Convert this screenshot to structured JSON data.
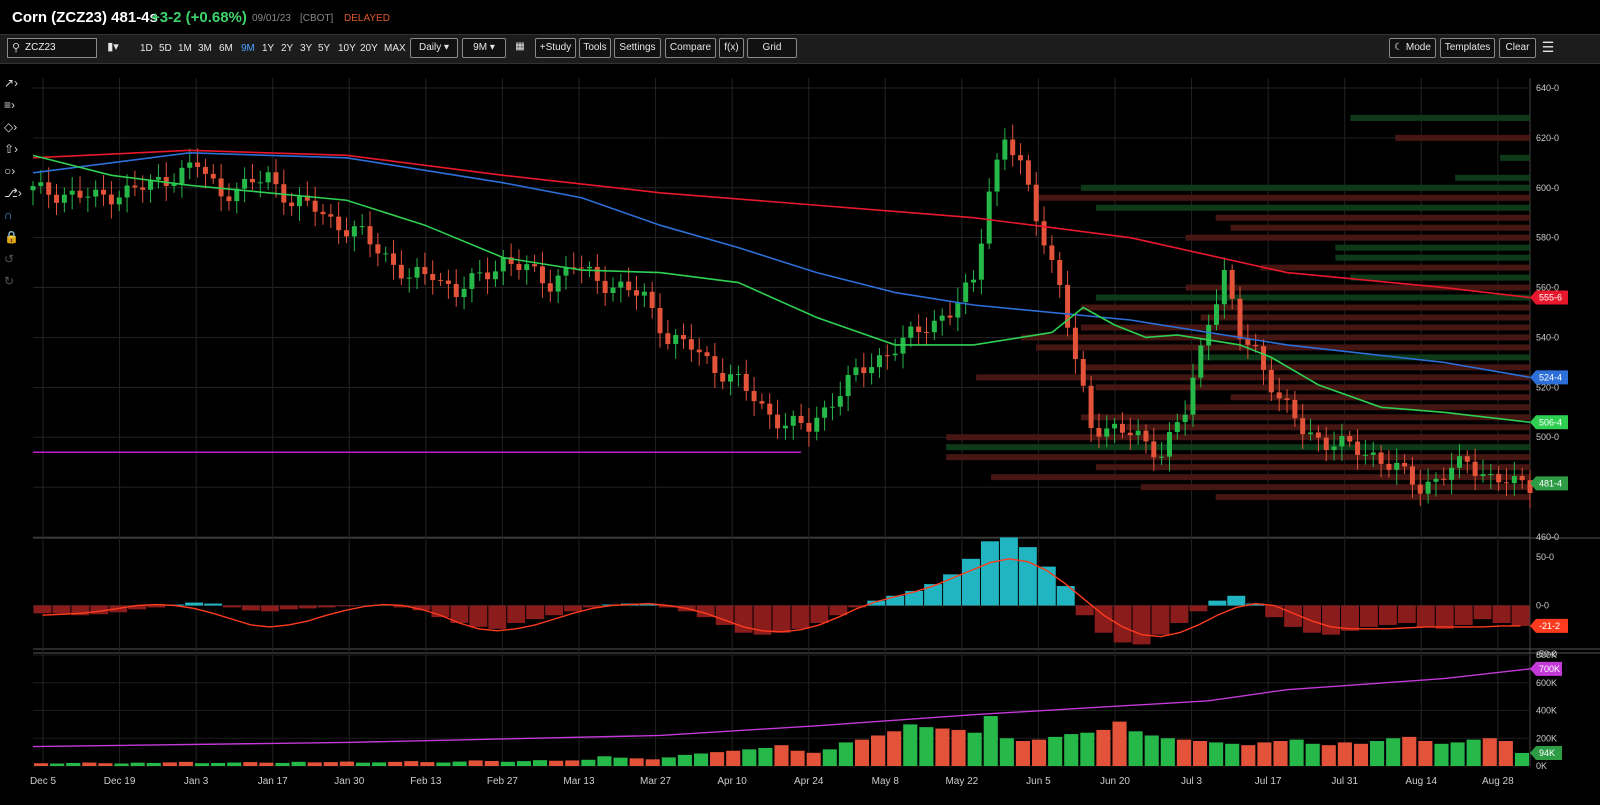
{
  "header": {
    "name": "Corn (ZCZ23) 481-4s",
    "change": "+3-2 (+0.68%)",
    "date": "09/01/23",
    "exchange": "[CBOT]",
    "status": "DELAYED"
  },
  "toolbar": {
    "symbol": "ZCZ23",
    "chart_type_icon": "bar-chart-icon",
    "timeframes": [
      "1D",
      "5D",
      "1M",
      "3M",
      "6M",
      "9M",
      "1Y",
      "2Y",
      "3Y",
      "5Y",
      "10Y",
      "20Y",
      "MAX"
    ],
    "active_timeframe": "9M",
    "interval": "Daily",
    "range": "9M",
    "study": "+Study",
    "tools": "Tools",
    "settings": "Settings",
    "compare": "Compare",
    "fx": "f(x)",
    "grid": "Grid",
    "mode": "Mode",
    "templates": "Templates",
    "clear": "Clear"
  },
  "left_tools": [
    "line-tool-icon",
    "fib-tool-icon",
    "shape-tool-icon",
    "arrow-tool-icon",
    "text-tool-icon",
    "pattern-tool-icon",
    "magnet-icon",
    "lock-icon",
    "undo-icon",
    "redo-icon"
  ],
  "colors": {
    "up": "#27b84a",
    "down": "#e3533a",
    "ma_red": "#e8182c",
    "ma_blue": "#2d6fd8",
    "ma_green": "#2fcf52",
    "hline": "#c021c7",
    "macd_pos": "#21b5c2",
    "macd_neg": "#8a1c1c",
    "macd_signal": "#ff3b1f",
    "volume_ma": "#c33ad9",
    "vap_up": "#0f3d1a",
    "vap_down": "#4a1714"
  },
  "chart_data": {
    "type": "candlestick",
    "dates": [
      "Dec 5",
      "Dec 19",
      "Jan 3",
      "Jan 17",
      "Jan 30",
      "Feb 13",
      "Feb 27",
      "Mar 13",
      "Mar 27",
      "Apr 10",
      "Apr 24",
      "May 8",
      "May 22",
      "Jun 5",
      "Jun 20",
      "Jul 3",
      "Jul 17",
      "Jul 31",
      "Aug 14",
      "Aug 28"
    ],
    "price_axis": {
      "ticks": [
        "640-0",
        "620-0",
        "600-0",
        "580-0",
        "560-0",
        "540-0",
        "520-0",
        "500-0",
        "480-0",
        "460-0"
      ],
      "ylim": [
        460,
        640
      ]
    },
    "close_path": [
      [
        0,
        599
      ],
      [
        8,
        596
      ],
      [
        14,
        600
      ],
      [
        18,
        605
      ],
      [
        21,
        609
      ],
      [
        24,
        598
      ],
      [
        27,
        600
      ],
      [
        30,
        605
      ],
      [
        33,
        594
      ],
      [
        36,
        592
      ],
      [
        40,
        583
      ],
      [
        42,
        581
      ],
      [
        45,
        573
      ],
      [
        48,
        563
      ],
      [
        51,
        566
      ],
      [
        54,
        558
      ],
      [
        57,
        564
      ],
      [
        60,
        571
      ],
      [
        63,
        567
      ],
      [
        66,
        562
      ],
      [
        69,
        569
      ],
      [
        72,
        563
      ],
      [
        75,
        560
      ],
      [
        78,
        556
      ],
      [
        81,
        540
      ],
      [
        84,
        536
      ],
      [
        87,
        528
      ],
      [
        90,
        522
      ],
      [
        93,
        512
      ],
      [
        96,
        505
      ],
      [
        99,
        504
      ],
      [
        102,
        515
      ],
      [
        105,
        525
      ],
      [
        108,
        532
      ],
      [
        111,
        538
      ],
      [
        114,
        545
      ],
      [
        117,
        550
      ],
      [
        120,
        562
      ],
      [
        122,
        600
      ],
      [
        124,
        620
      ],
      [
        126,
        608
      ],
      [
        129,
        580
      ],
      [
        131,
        560
      ],
      [
        133,
        530
      ],
      [
        135,
        505
      ],
      [
        138,
        503
      ],
      [
        141,
        500
      ],
      [
        144,
        494
      ],
      [
        147,
        510
      ],
      [
        150,
        548
      ],
      [
        152,
        565
      ],
      [
        154,
        540
      ],
      [
        156,
        535
      ],
      [
        159,
        515
      ],
      [
        162,
        503
      ],
      [
        165,
        498
      ],
      [
        168,
        496
      ],
      [
        171,
        493
      ],
      [
        174,
        487
      ],
      [
        177,
        480
      ],
      [
        180,
        485
      ],
      [
        183,
        490
      ],
      [
        186,
        484
      ],
      [
        189,
        481
      ],
      [
        191,
        481
      ]
    ],
    "moving_averages": [
      {
        "color": "ma_red",
        "label": "555-6",
        "points": [
          [
            0,
            612
          ],
          [
            20,
            615
          ],
          [
            40,
            613
          ],
          [
            60,
            605
          ],
          [
            80,
            598
          ],
          [
            100,
            593
          ],
          [
            120,
            588
          ],
          [
            140,
            580
          ],
          [
            160,
            566
          ],
          [
            180,
            560
          ],
          [
            191,
            556
          ]
        ]
      },
      {
        "color": "ma_blue",
        "label": "524-4",
        "points": [
          [
            0,
            606
          ],
          [
            20,
            614
          ],
          [
            40,
            612
          ],
          [
            60,
            602
          ],
          [
            70,
            596
          ],
          [
            80,
            585
          ],
          [
            90,
            576
          ],
          [
            100,
            566
          ],
          [
            110,
            558
          ],
          [
            120,
            553
          ],
          [
            140,
            547
          ],
          [
            160,
            537
          ],
          [
            180,
            530
          ],
          [
            191,
            524
          ]
        ]
      },
      {
        "color": "ma_green",
        "label": "506-4",
        "points": [
          [
            0,
            613
          ],
          [
            10,
            605
          ],
          [
            20,
            601
          ],
          [
            30,
            598
          ],
          [
            40,
            595
          ],
          [
            50,
            585
          ],
          [
            60,
            572
          ],
          [
            70,
            567
          ],
          [
            80,
            566
          ],
          [
            90,
            562
          ],
          [
            100,
            548
          ],
          [
            110,
            537
          ],
          [
            120,
            537
          ],
          [
            130,
            542
          ],
          [
            134,
            552
          ],
          [
            138,
            545
          ],
          [
            142,
            540
          ],
          [
            146,
            541
          ],
          [
            150,
            539
          ],
          [
            154,
            537
          ],
          [
            158,
            532
          ],
          [
            164,
            521
          ],
          [
            172,
            512
          ],
          [
            180,
            510
          ],
          [
            191,
            506
          ]
        ]
      }
    ],
    "horizontal_line": 494,
    "last_price_label": "481-4",
    "volume_profile": [
      [
        628,
        0.12,
        "up"
      ],
      [
        620,
        0.09,
        "down"
      ],
      [
        612,
        0.02,
        "up"
      ],
      [
        604,
        0.05,
        "up"
      ],
      [
        600,
        0.3,
        "up"
      ],
      [
        596,
        0.33,
        "down"
      ],
      [
        592,
        0.29,
        "up"
      ],
      [
        588,
        0.21,
        "down"
      ],
      [
        584,
        0.2,
        "down"
      ],
      [
        580,
        0.23,
        "down"
      ],
      [
        576,
        0.13,
        "up"
      ],
      [
        572,
        0.13,
        "up"
      ],
      [
        568,
        0.18,
        "down"
      ],
      [
        564,
        0.12,
        "up"
      ],
      [
        560,
        0.23,
        "down"
      ],
      [
        556,
        0.29,
        "up"
      ],
      [
        552,
        0.3,
        "down"
      ],
      [
        548,
        0.22,
        "down"
      ],
      [
        544,
        0.3,
        "down"
      ],
      [
        540,
        0.34,
        "down"
      ],
      [
        536,
        0.33,
        "down"
      ],
      [
        532,
        0.22,
        "up"
      ],
      [
        528,
        0.3,
        "down"
      ],
      [
        524,
        0.37,
        "down"
      ],
      [
        520,
        0.29,
        "down"
      ],
      [
        516,
        0.2,
        "down"
      ],
      [
        512,
        0.23,
        "down"
      ],
      [
        508,
        0.3,
        "down"
      ],
      [
        504,
        0.27,
        "down"
      ],
      [
        500,
        0.39,
        "down"
      ],
      [
        496,
        0.39,
        "up"
      ],
      [
        492,
        0.39,
        "down"
      ],
      [
        488,
        0.29,
        "down"
      ],
      [
        484,
        0.36,
        "down"
      ],
      [
        480,
        0.26,
        "down"
      ],
      [
        476,
        0.21,
        "down"
      ]
    ],
    "macd": {
      "ticks": [
        "50-0",
        "0-0",
        "-50-0"
      ],
      "label": "-21-2",
      "histogram": [
        -8,
        -8,
        -10,
        -9,
        -7,
        -4,
        -2,
        1,
        3,
        2,
        -2,
        -5,
        -6,
        -4,
        -3,
        -2,
        -1,
        0,
        1,
        -2,
        -5,
        -12,
        -18,
        -22,
        -24,
        -18,
        -14,
        -10,
        -6,
        -2,
        1,
        2,
        1,
        -2,
        -6,
        -12,
        -20,
        -28,
        -30,
        -28,
        -24,
        -18,
        -10,
        -2,
        5,
        10,
        15,
        22,
        32,
        48,
        66,
        70,
        60,
        40,
        20,
        -10,
        -28,
        -38,
        -40,
        -30,
        -18,
        -6,
        5,
        10,
        2,
        -12,
        -22,
        -28,
        -30,
        -26,
        -22,
        -20,
        -18,
        -22,
        -24,
        -20,
        -14,
        -18,
        -21
      ],
      "signal": [
        -10,
        -9,
        -8,
        -6,
        -3,
        0,
        1,
        0,
        -3,
        -8,
        -14,
        -20,
        -22,
        -20,
        -16,
        -10,
        -5,
        -1,
        1,
        0,
        -4,
        -10,
        -18,
        -24,
        -26,
        -24,
        -20,
        -14,
        -8,
        -3,
        0,
        1,
        2,
        0,
        -3,
        -8,
        -15,
        -22,
        -26,
        -27,
        -25,
        -20,
        -12,
        -3,
        4,
        9,
        14,
        20,
        28,
        36,
        44,
        48,
        45,
        36,
        22,
        6,
        -10,
        -22,
        -30,
        -32,
        -28,
        -20,
        -10,
        -2,
        2,
        0,
        -8,
        -16,
        -22,
        -24,
        -24,
        -24,
        -23,
        -22,
        -22,
        -22,
        -22,
        -21,
        -21
      ]
    },
    "volume": {
      "ticks": [
        "800K",
        "600K",
        "400K",
        "200K",
        "0K"
      ],
      "ma_label": "700K",
      "last_label": "94K",
      "ma_points": [
        [
          0,
          140
        ],
        [
          40,
          170
        ],
        [
          80,
          220
        ],
        [
          100,
          290
        ],
        [
          120,
          370
        ],
        [
          135,
          420
        ],
        [
          150,
          470
        ],
        [
          160,
          550
        ],
        [
          170,
          590
        ],
        [
          180,
          630
        ],
        [
          191,
          700
        ]
      ],
      "bars": [
        20,
        18,
        22,
        25,
        20,
        18,
        24,
        22,
        26,
        30,
        20,
        22,
        25,
        28,
        24,
        22,
        30,
        26,
        28,
        32,
        24,
        26,
        30,
        35,
        28,
        25,
        32,
        40,
        36,
        30,
        35,
        42,
        38,
        40,
        45,
        70,
        60,
        55,
        48,
        62,
        80,
        90,
        100,
        110,
        120,
        130,
        150,
        110,
        95,
        120,
        170,
        190,
        220,
        250,
        300,
        280,
        270,
        260,
        240,
        360,
        200,
        180,
        190,
        210,
        230,
        240,
        260,
        320,
        250,
        220,
        200,
        190,
        180,
        170,
        160,
        150,
        170,
        180,
        190,
        160,
        150,
        170,
        160,
        180,
        200,
        210,
        180,
        160,
        170,
        190,
        200,
        180,
        94
      ]
    },
    "title": "",
    "xlabel": "",
    "ylabel": ""
  }
}
